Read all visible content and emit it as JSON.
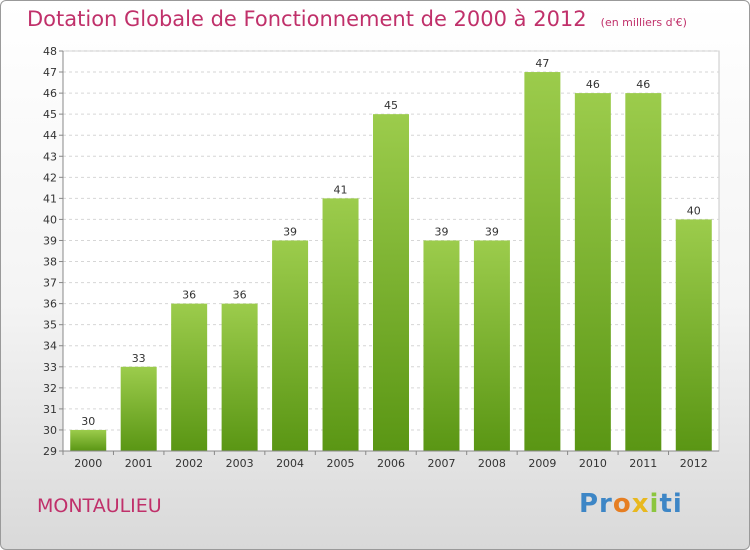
{
  "chart_data": {
    "type": "bar",
    "title": "Dotation Globale de Fonctionnement de 2000 à 2012",
    "unit": "(en milliers d'€)",
    "categories": [
      "2000",
      "2001",
      "2002",
      "2003",
      "2004",
      "2005",
      "2006",
      "2007",
      "2008",
      "2009",
      "2010",
      "2011",
      "2012"
    ],
    "values": [
      30,
      33,
      36,
      36,
      39,
      41,
      45,
      39,
      39,
      47,
      46,
      46,
      40
    ],
    "ylim": [
      29,
      48
    ],
    "yticks": [
      29,
      30,
      31,
      32,
      33,
      34,
      35,
      36,
      37,
      38,
      39,
      40,
      41,
      42,
      43,
      44,
      45,
      46,
      47,
      48
    ],
    "xlabel": "",
    "ylabel": "",
    "grid": true,
    "colors": {
      "bar_top": "#9ccc4c",
      "bar_bottom": "#5a9614",
      "title": "#c0306a"
    }
  },
  "footer": {
    "place": "MONTAULIEU",
    "logo": {
      "part1": "Pr",
      "part2": "o",
      "part3": "x",
      "part4": "i",
      "part5": "ti"
    }
  }
}
